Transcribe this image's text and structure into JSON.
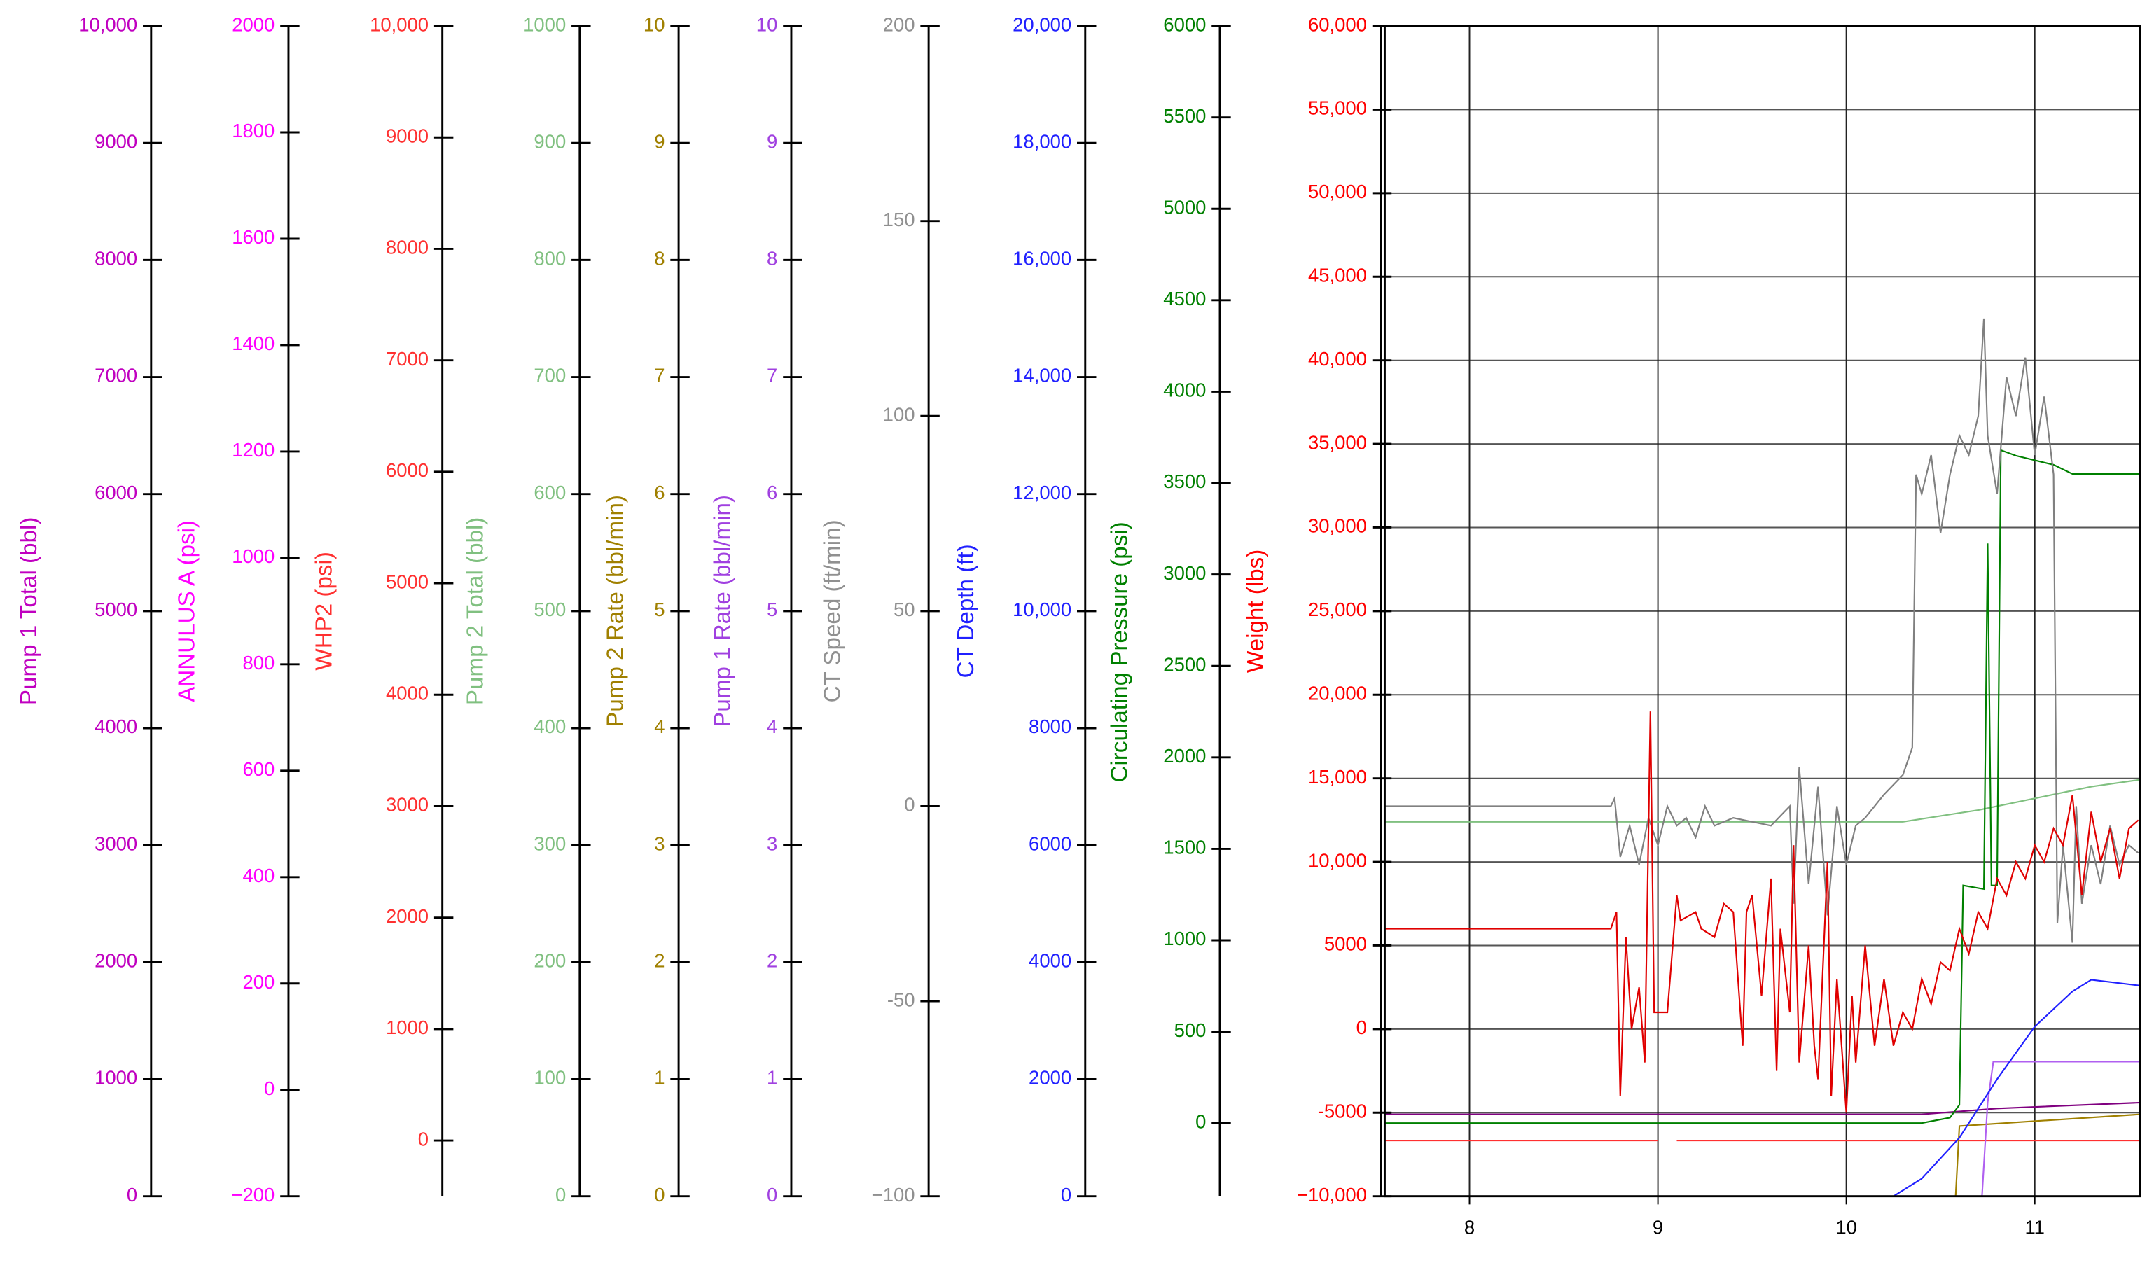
{
  "chart_data": {
    "type": "line",
    "grid": true,
    "xlim": [
      7.55,
      11.56
    ],
    "xticks": [
      8,
      9,
      10,
      11
    ],
    "axes": [
      {
        "title": "Pump 1 Total  (bbl)",
        "color": "#c000c0",
        "ylim": [
          0,
          10000
        ],
        "yticks": [
          0,
          1000,
          2000,
          3000,
          4000,
          5000,
          6000,
          7000,
          8000,
          9000,
          {
            "value": 10000,
            "label": "10,000"
          }
        ]
      },
      {
        "title": "ANNULUS A  (psi)",
        "color": "#ff00ff",
        "ylim": [
          -200,
          2000
        ],
        "yticks": [
          {
            "value": -200,
            "label": "−200"
          },
          0,
          200,
          400,
          600,
          800,
          1000,
          1200,
          1400,
          1600,
          1800,
          2000
        ]
      },
      {
        "title": "WHP2  (psi)",
        "color": "#ff3030",
        "ylim": [
          -500,
          10000
        ],
        "yticks": [
          0,
          1000,
          2000,
          3000,
          4000,
          5000,
          6000,
          7000,
          8000,
          9000,
          {
            "value": 10000,
            "label": "10,000"
          }
        ]
      },
      {
        "title": "Pump 2 Total  (bbl)",
        "color": "#80c080",
        "ylim": [
          0,
          1000
        ],
        "yticks": [
          0,
          100,
          200,
          300,
          400,
          500,
          600,
          700,
          800,
          900,
          1000
        ]
      },
      {
        "title": "Pump 2 Rate  (bbl/min)",
        "color": "#a08000",
        "ylim": [
          0,
          10
        ],
        "yticks": [
          0,
          1,
          2,
          3,
          4,
          5,
          6,
          7,
          8,
          9,
          10
        ]
      },
      {
        "title": "Pump 1 Rate  (bbl/min)",
        "color": "#a040e0",
        "ylim": [
          0,
          10
        ],
        "yticks": [
          0,
          1,
          2,
          3,
          4,
          5,
          6,
          7,
          8,
          9,
          10
        ]
      },
      {
        "title": "CT Speed  (ft/min)",
        "color": "#909090",
        "ylim": [
          -100,
          200
        ],
        "yticks": [
          {
            "value": -100,
            "label": "−100"
          },
          -50,
          0,
          50,
          100,
          150,
          200
        ]
      },
      {
        "title": "CT Depth  (ft)",
        "color": "#2020ff",
        "ylim": [
          0,
          20000
        ],
        "yticks": [
          0,
          2000,
          4000,
          6000,
          8000,
          {
            "value": 10000,
            "label": "10,000"
          },
          {
            "value": 12000,
            "label": "12,000"
          },
          {
            "value": 14000,
            "label": "14,000"
          },
          {
            "value": 16000,
            "label": "16,000"
          },
          {
            "value": 18000,
            "label": "18,000"
          },
          {
            "value": 20000,
            "label": "20,000"
          }
        ]
      },
      {
        "title": "Circulating Pressure  (psi)",
        "color": "#008000",
        "ylim": [
          -400,
          6000
        ],
        "yticks": [
          0,
          500,
          1000,
          1500,
          2000,
          2500,
          3000,
          3500,
          4000,
          4500,
          5000,
          5500,
          6000
        ]
      },
      {
        "title": "Weight  (lbs)",
        "color": "#ff0000",
        "ylim": [
          -10000,
          60000
        ],
        "yticks": [
          {
            "value": -10000,
            "label": "−10,000"
          },
          -5000,
          0,
          5000,
          {
            "value": 10000,
            "label": "10,000"
          },
          {
            "value": 15000,
            "label": "15,000"
          },
          {
            "value": 20000,
            "label": "20,000"
          },
          {
            "value": 25000,
            "label": "25,000"
          },
          {
            "value": 30000,
            "label": "30,000"
          },
          {
            "value": 35000,
            "label": "35,000"
          },
          {
            "value": 40000,
            "label": "40,000"
          },
          {
            "value": 45000,
            "label": "45,000"
          },
          {
            "value": 50000,
            "label": "50,000"
          },
          {
            "value": 55000,
            "label": "55,000"
          },
          {
            "value": 60000,
            "label": "60,000"
          }
        ]
      }
    ],
    "series": [
      {
        "axis": 3,
        "color": "#80c080",
        "x": [
          7.55,
          10.3,
          10.7,
          11.0,
          11.3,
          11.56
        ],
        "values": [
          320,
          320,
          330,
          340,
          350,
          356
        ]
      },
      {
        "axis": 0,
        "color": "#800080",
        "x": [
          7.55,
          10.4,
          10.8,
          11.56
        ],
        "values": [
          700,
          700,
          750,
          800
        ]
      },
      {
        "axis": 2,
        "color": "#ff3030",
        "x": [
          7.55,
          9.0,
          9.05,
          9.1,
          11.56
        ],
        "values": [
          0,
          0,
          null,
          0,
          0
        ]
      },
      {
        "axis": 4,
        "color": "#a08000",
        "x": [
          7.55,
          10.58,
          10.6,
          11.56
        ],
        "values": [
          0,
          0,
          0.6,
          0.7
        ]
      },
      {
        "axis": 5,
        "color": "#b060f0",
        "x": [
          7.55,
          10.72,
          10.75,
          10.78,
          11.56
        ],
        "values": [
          0,
          0,
          0.8,
          1.15,
          1.15
        ]
      },
      {
        "axis": 7,
        "color": "#2020ff",
        "x": [
          7.55,
          10.25,
          10.4,
          10.6,
          10.8,
          11.0,
          11.2,
          11.3,
          11.56
        ],
        "values": [
          0,
          0,
          300,
          1000,
          2000,
          2900,
          3500,
          3700,
          3600
        ]
      },
      {
        "axis": 8,
        "color": "#008000",
        "x": [
          7.55,
          10.4,
          10.55,
          10.6,
          10.62,
          10.73,
          10.75,
          10.77,
          10.8,
          10.82,
          10.9,
          11.1,
          11.2,
          11.56
        ],
        "values": [
          0,
          0,
          30,
          100,
          1300,
          1280,
          3170,
          1300,
          1300,
          3680,
          3650,
          3600,
          3550,
          3550
        ]
      },
      {
        "axis": 6,
        "color": "#808080",
        "x": [
          7.55,
          8.75,
          8.77,
          8.8,
          8.85,
          8.9,
          8.95,
          9.0,
          9.05,
          9.1,
          9.15,
          9.2,
          9.25,
          9.3,
          9.4,
          9.5,
          9.6,
          9.7,
          9.72,
          9.75,
          9.8,
          9.85,
          9.9,
          9.95,
          10.0,
          10.05,
          10.1,
          10.2,
          10.3,
          10.35,
          10.37,
          10.4,
          10.45,
          10.5,
          10.55,
          10.6,
          10.65,
          10.7,
          10.73,
          10.75,
          10.8,
          10.85,
          10.9,
          10.95,
          11.0,
          11.05,
          11.1,
          11.12,
          11.15,
          11.2,
          11.22,
          11.25,
          11.3,
          11.35,
          11.4,
          11.45,
          11.5,
          11.55
        ],
        "values": [
          0,
          0,
          2,
          -13,
          -5,
          -15,
          -3,
          -10,
          0,
          -5,
          -3,
          -8,
          0,
          -5,
          -3,
          -4,
          -5,
          0,
          -25,
          10,
          -20,
          5,
          -28,
          0,
          -15,
          -5,
          -3,
          3,
          8,
          15,
          85,
          80,
          90,
          70,
          85,
          95,
          90,
          100,
          125,
          95,
          80,
          110,
          100,
          115,
          90,
          105,
          85,
          -30,
          -10,
          -35,
          0,
          -25,
          -10,
          -20,
          -5,
          -15,
          -10,
          -12
        ]
      },
      {
        "axis": 9,
        "color": "#e00000",
        "x": [
          7.55,
          8.75,
          8.78,
          8.8,
          8.83,
          8.86,
          8.9,
          8.93,
          8.96,
          8.98,
          9.05,
          9.1,
          9.12,
          9.2,
          9.23,
          9.3,
          9.35,
          9.4,
          9.45,
          9.47,
          9.5,
          9.55,
          9.6,
          9.63,
          9.65,
          9.7,
          9.72,
          9.75,
          9.8,
          9.83,
          9.85,
          9.9,
          9.92,
          9.95,
          10.0,
          10.03,
          10.05,
          10.1,
          10.15,
          10.2,
          10.25,
          10.3,
          10.35,
          10.4,
          10.45,
          10.5,
          10.55,
          10.6,
          10.65,
          10.7,
          10.75,
          10.8,
          10.85,
          10.9,
          10.95,
          11.0,
          11.05,
          11.1,
          11.15,
          11.2,
          11.25,
          11.3,
          11.35,
          11.4,
          11.45,
          11.5,
          11.55
        ],
        "values": [
          6000,
          6000,
          7000,
          -4000,
          5500,
          0,
          2500,
          -2000,
          19000,
          1000,
          1000,
          8000,
          6500,
          7000,
          6000,
          5500,
          7500,
          7000,
          -1000,
          7000,
          8000,
          2000,
          9000,
          -2500,
          6000,
          1000,
          11000,
          -2000,
          5000,
          -1000,
          -3000,
          10000,
          -4000,
          3000,
          -5000,
          2000,
          -2000,
          5000,
          -1000,
          3000,
          -1000,
          1000,
          0,
          3000,
          1500,
          4000,
          3500,
          6000,
          4500,
          7000,
          6000,
          9000,
          8000,
          10000,
          9000,
          11000,
          10000,
          12000,
          11000,
          14000,
          8000,
          13000,
          10000,
          12000,
          9000,
          12000,
          12500
        ]
      }
    ]
  }
}
